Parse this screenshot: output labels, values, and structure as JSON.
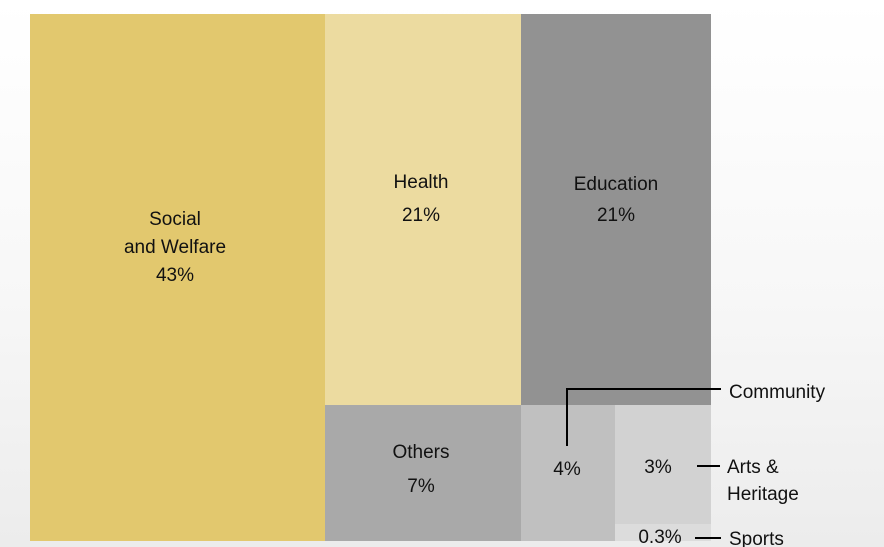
{
  "chart_data": {
    "type": "treemap",
    "items": [
      {
        "name": "Social",
        "name2": "and Welfare",
        "value": 43,
        "label": "43%",
        "color": "#e2c86e"
      },
      {
        "name": "Health",
        "value": 21,
        "label": "21%",
        "color": "#ecdba0"
      },
      {
        "name": "Education",
        "value": 21,
        "label": "21%",
        "color": "#929292"
      },
      {
        "name": "Others",
        "value": 7,
        "label": "7%",
        "color": "#a9a9a9"
      },
      {
        "name": "Community",
        "value": 4,
        "label": "4%",
        "color": "#c0c0c0"
      },
      {
        "name": "Arts &",
        "name2": "Heritage",
        "value": 3,
        "label": "3%",
        "color": "#d2d2d2"
      },
      {
        "name": "Sports",
        "value": 0.3,
        "label": "0.3%",
        "color": "#dcdcdc"
      }
    ]
  }
}
